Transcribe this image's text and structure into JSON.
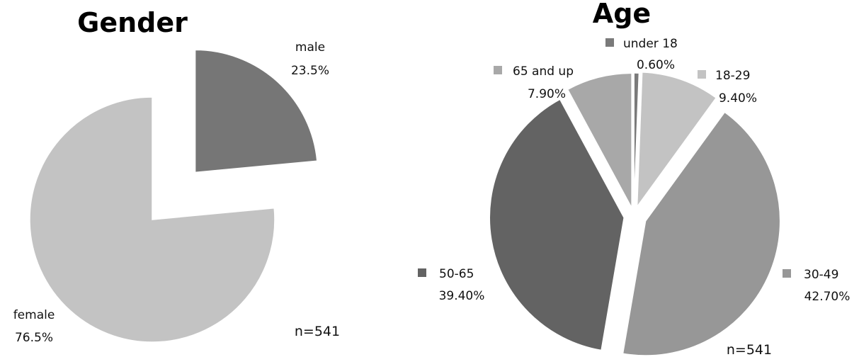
{
  "chart_data": [
    {
      "type": "pie",
      "title": "Gender",
      "slices": [
        {
          "label": "male",
          "value": 23.5,
          "display": "23.5%",
          "color": "#767676"
        },
        {
          "label": "female",
          "value": 76.5,
          "display": "76.5%",
          "color": "#c3c3c3"
        }
      ],
      "note": "n=541",
      "legend": "none",
      "exploded": [
        "male"
      ]
    },
    {
      "type": "pie",
      "title": "Age",
      "slices": [
        {
          "label": "under 18",
          "value": 0.6,
          "display": "0.60%",
          "color": "#7a7a7a"
        },
        {
          "label": "18-29",
          "value": 9.4,
          "display": "9.40%",
          "color": "#c3c3c3"
        },
        {
          "label": "30-49",
          "value": 42.7,
          "display": "42.70%",
          "color": "#979797"
        },
        {
          "label": "50-65",
          "value": 39.4,
          "display": "39.40%",
          "color": "#636363"
        },
        {
          "label": "65 and up",
          "value": 7.9,
          "display": "7.90%",
          "color": "#a8a8a8"
        }
      ],
      "note": "n=541",
      "legend": "labels with color keys beside slices",
      "exploded": [
        "under 18",
        "18-29",
        "30-49",
        "50-65",
        "65 and up"
      ]
    }
  ]
}
